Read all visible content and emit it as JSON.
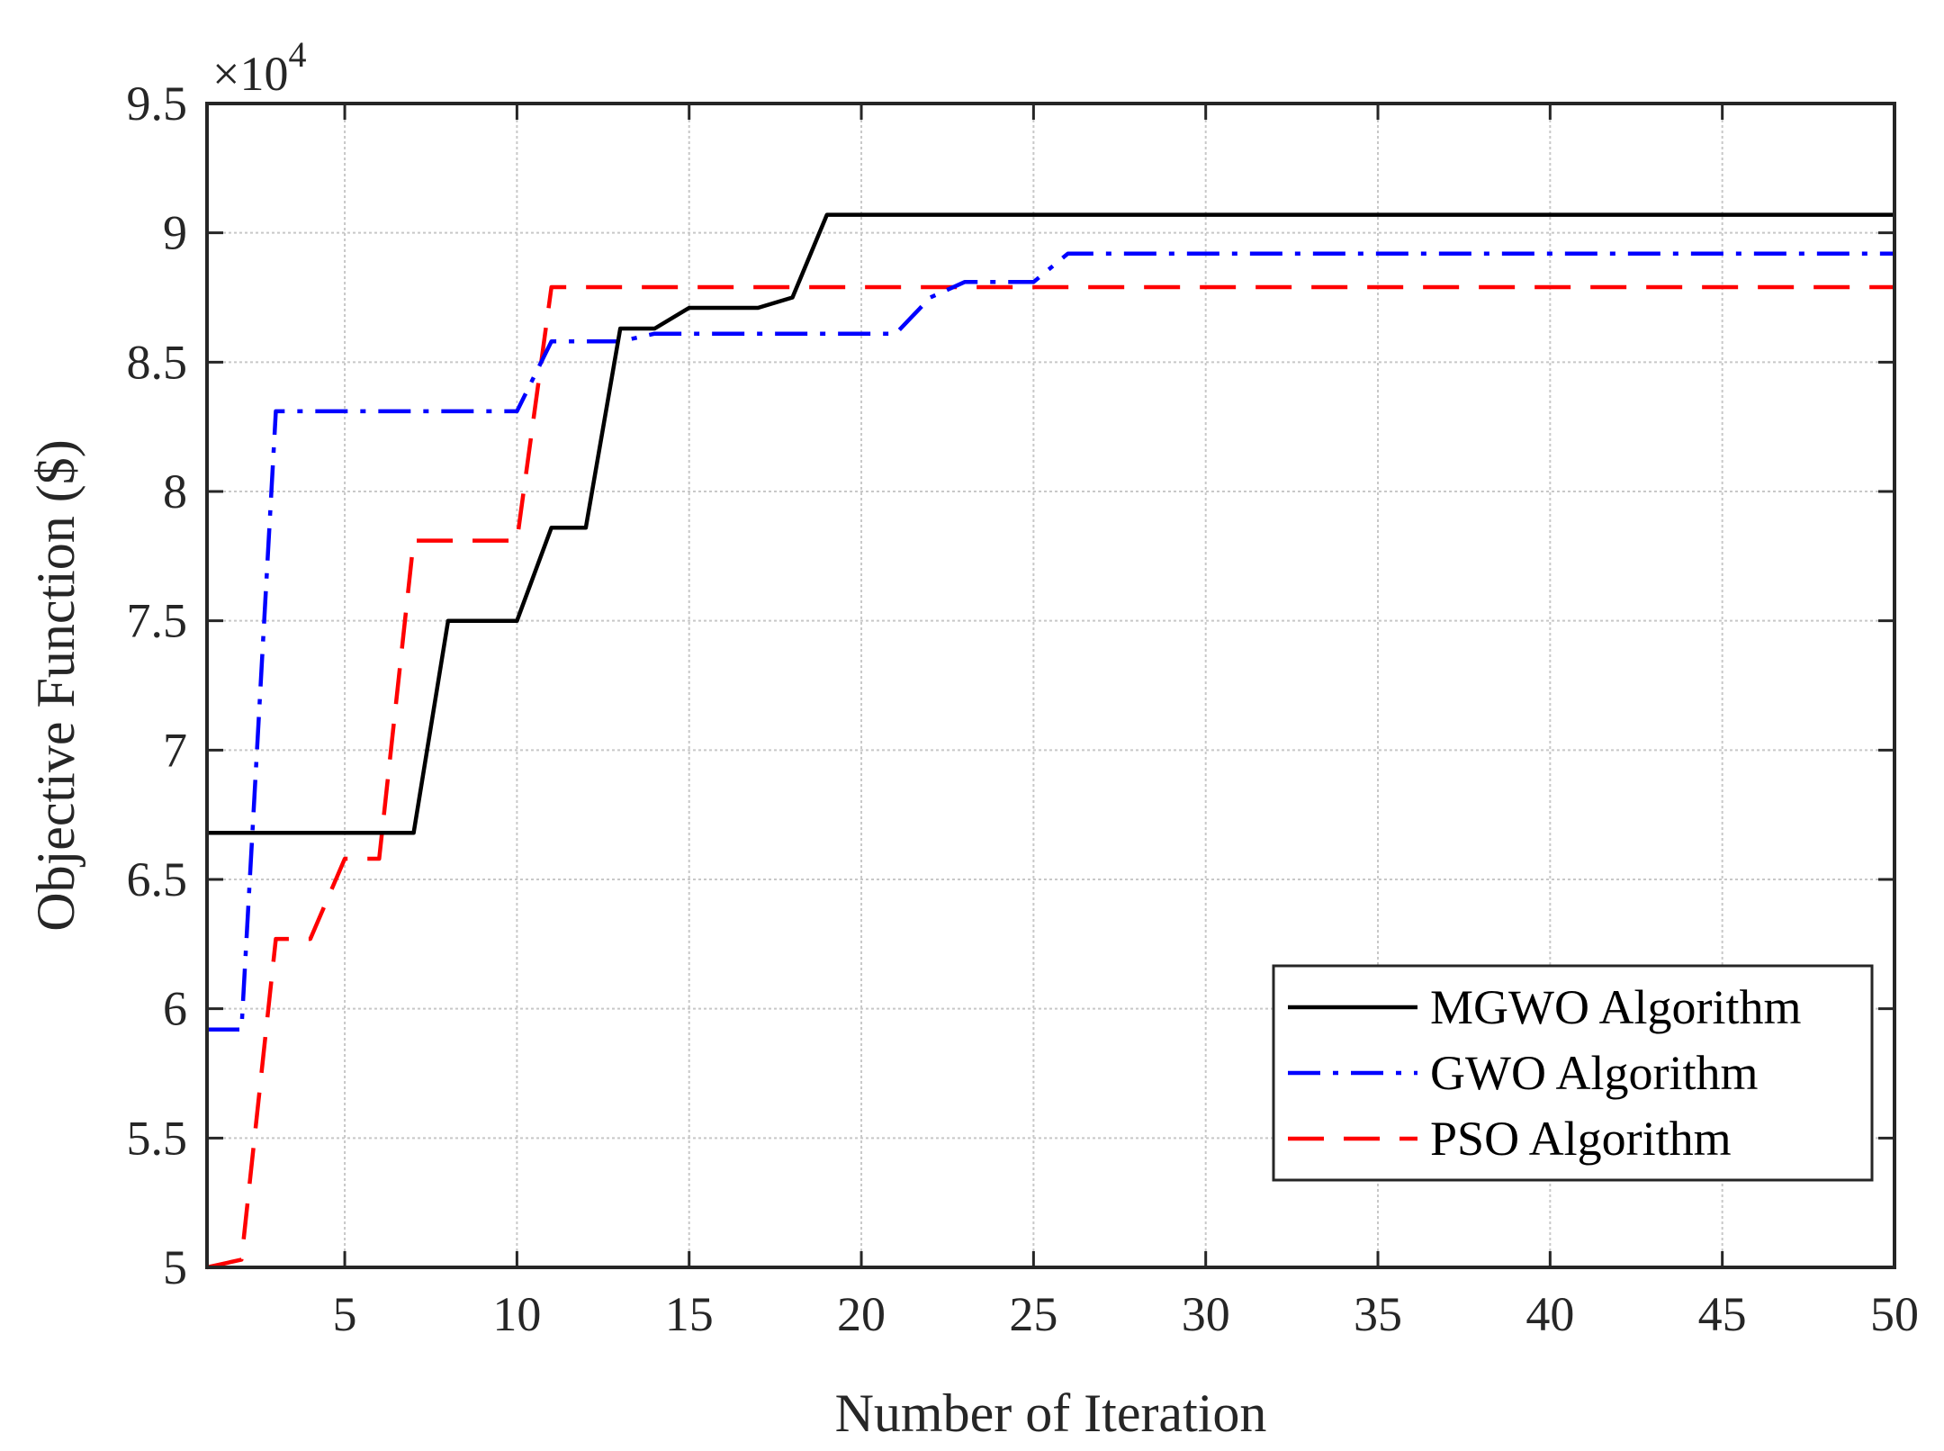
{
  "chart_data": {
    "type": "line",
    "title": "",
    "xlabel": "Number of Iteration",
    "ylabel": "Objective Function ($)",
    "exponent_label": "×10",
    "exponent_power": "4",
    "xlim": [
      1,
      50
    ],
    "ylim": [
      5,
      9.5
    ],
    "grid": true,
    "legend_position": "bottom-right",
    "x_ticks": [
      5,
      10,
      15,
      20,
      25,
      30,
      35,
      40,
      45,
      50
    ],
    "x_tick_labels": [
      "5",
      "10",
      "15",
      "20",
      "25",
      "30",
      "35",
      "40",
      "45",
      "50"
    ],
    "y_ticks": [
      5,
      5.5,
      6,
      6.5,
      7,
      7.5,
      8,
      8.5,
      9,
      9.5
    ],
    "y_tick_labels": [
      "5",
      "5.5",
      "6",
      "6.5",
      "7",
      "7.5",
      "8",
      "8.5",
      "9",
      "9.5"
    ],
    "x": [
      1,
      2,
      3,
      4,
      5,
      6,
      7,
      8,
      9,
      10,
      11,
      12,
      13,
      14,
      15,
      16,
      17,
      18,
      19,
      20,
      21,
      22,
      23,
      24,
      25,
      26,
      27,
      28,
      29,
      30,
      31,
      32,
      33,
      34,
      35,
      36,
      37,
      38,
      39,
      40,
      41,
      42,
      43,
      44,
      45,
      46,
      47,
      48,
      49,
      50
    ],
    "series": [
      {
        "name": "MGWO Algorithm",
        "color": "#000000",
        "dash": "solid",
        "values": [
          6.68,
          6.68,
          6.68,
          6.68,
          6.68,
          6.68,
          6.68,
          7.5,
          7.5,
          7.5,
          7.86,
          7.86,
          8.63,
          8.63,
          8.71,
          8.71,
          8.71,
          8.75,
          9.07,
          9.07,
          9.07,
          9.07,
          9.07,
          9.07,
          9.07,
          9.07,
          9.07,
          9.07,
          9.07,
          9.07,
          9.07,
          9.07,
          9.07,
          9.07,
          9.07,
          9.07,
          9.07,
          9.07,
          9.07,
          9.07,
          9.07,
          9.07,
          9.07,
          9.07,
          9.07,
          9.07,
          9.07,
          9.07,
          9.07,
          9.07
        ]
      },
      {
        "name": "GWO Algorithm",
        "color": "#0000ff",
        "dash": "dashdot",
        "values": [
          5.92,
          5.92,
          8.31,
          8.31,
          8.31,
          8.31,
          8.31,
          8.31,
          8.31,
          8.31,
          8.58,
          8.58,
          8.58,
          8.61,
          8.61,
          8.61,
          8.61,
          8.61,
          8.61,
          8.61,
          8.61,
          8.75,
          8.81,
          8.81,
          8.81,
          8.92,
          8.92,
          8.92,
          8.92,
          8.92,
          8.92,
          8.92,
          8.92,
          8.92,
          8.92,
          8.92,
          8.92,
          8.92,
          8.92,
          8.92,
          8.92,
          8.92,
          8.92,
          8.92,
          8.92,
          8.92,
          8.92,
          8.92,
          8.92,
          8.92
        ]
      },
      {
        "name": "PSO Algorithm",
        "color": "#ff0000",
        "dash": "dashed",
        "values": [
          5.0,
          5.03,
          6.27,
          6.27,
          6.58,
          6.58,
          7.81,
          7.81,
          7.81,
          7.81,
          8.79,
          8.79,
          8.79,
          8.79,
          8.79,
          8.79,
          8.79,
          8.79,
          8.79,
          8.79,
          8.79,
          8.79,
          8.79,
          8.79,
          8.79,
          8.79,
          8.79,
          8.79,
          8.79,
          8.79,
          8.79,
          8.79,
          8.79,
          8.79,
          8.79,
          8.79,
          8.79,
          8.79,
          8.79,
          8.79,
          8.79,
          8.79,
          8.79,
          8.79,
          8.79,
          8.79,
          8.79,
          8.79,
          8.79,
          8.79
        ]
      }
    ]
  }
}
